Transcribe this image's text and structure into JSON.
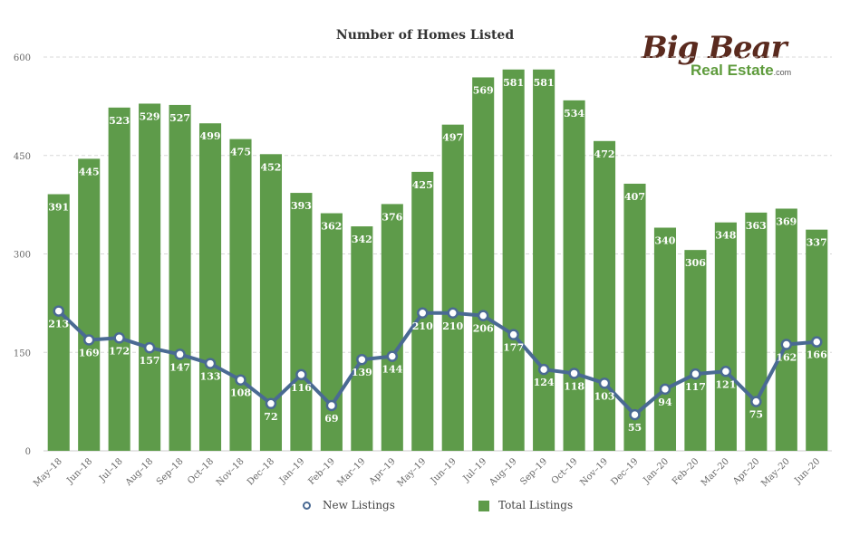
{
  "chart_data": {
    "type": "bar",
    "title": "Number of Homes Listed",
    "xlabel": "",
    "ylabel": "",
    "ylim": [
      0,
      600
    ],
    "yticks": [
      0,
      150,
      300,
      450,
      600
    ],
    "grid": true,
    "legend_position": "bottom",
    "categories": [
      "May–18",
      "Jun–18",
      "Jul–18",
      "Aug–18",
      "Sep–18",
      "Oct–18",
      "Nov–18",
      "Dec–18",
      "Jan–19",
      "Feb–19",
      "Mar–19",
      "Apr–19",
      "May–19",
      "Jun–19",
      "Jul–19",
      "Aug–19",
      "Sep–19",
      "Oct–19",
      "Nov–19",
      "Dec–19",
      "Jan–20",
      "Feb–20",
      "Mar–20",
      "Apr–20",
      "May–20",
      "Jun–20"
    ],
    "series": [
      {
        "name": "Total Listings",
        "type": "bar",
        "color": "#5e9b4a",
        "values": [
          391,
          445,
          523,
          529,
          527,
          499,
          475,
          452,
          393,
          362,
          342,
          376,
          425,
          497,
          569,
          581,
          581,
          534,
          472,
          407,
          340,
          306,
          348,
          363,
          369,
          337
        ]
      },
      {
        "name": "New Listings",
        "type": "line",
        "color": "#4a6a93",
        "values": [
          213,
          169,
          172,
          157,
          147,
          133,
          108,
          72,
          116,
          69,
          139,
          144,
          210,
          210,
          206,
          177,
          124,
          118,
          103,
          55,
          94,
          117,
          121,
          75,
          162,
          166
        ]
      }
    ]
  },
  "logo": {
    "main_text": "Big Bear",
    "sub_text": "Real Estate",
    "suffix": ".com"
  }
}
